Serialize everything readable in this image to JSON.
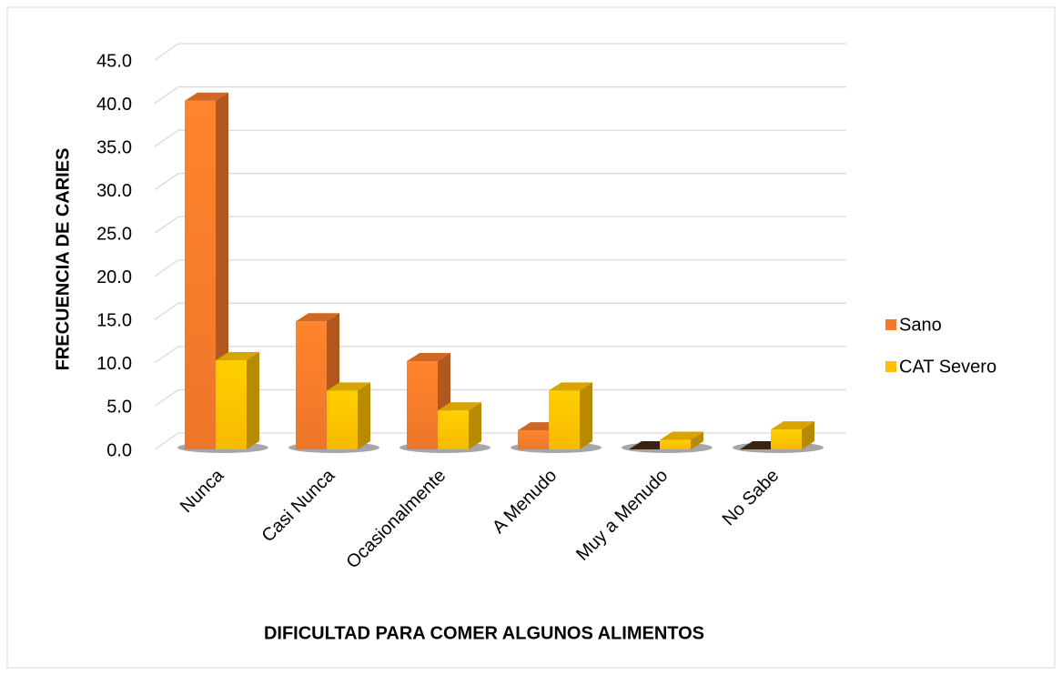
{
  "chart_data": {
    "type": "bar3d",
    "y_label": "FRECUENCIA DE CARIES",
    "x_label": "DIFICULTAD PARA COMER ALGUNOS ALIMENTOS",
    "categories": [
      "Nunca",
      "Casi Nunca",
      "Ocasionalmente",
      "A Menudo",
      "Muy a Menudo",
      "No Sabe"
    ],
    "series": [
      {
        "name": "Sano",
        "color": "#f47a2a",
        "values": [
          40.3,
          14.8,
          10.2,
          2.2,
          0,
          0
        ]
      },
      {
        "name": "CAT Severo",
        "color": "#ffc000",
        "values": [
          10.3,
          6.8,
          4.5,
          6.8,
          1.1,
          2.3
        ]
      }
    ],
    "ylim": [
      0,
      45
    ],
    "yticks": [
      {
        "value": 0,
        "label": "0.0"
      },
      {
        "value": 5,
        "label": "5.0"
      },
      {
        "value": 10,
        "label": "10.0"
      },
      {
        "value": 15,
        "label": "15.0"
      },
      {
        "value": 20,
        "label": "20.0"
      },
      {
        "value": 25,
        "label": "25.0"
      },
      {
        "value": 30,
        "label": "30.0"
      },
      {
        "value": 35,
        "label": "35.0"
      },
      {
        "value": 40,
        "label": "40.0"
      },
      {
        "value": 45,
        "label": "45.0"
      }
    ],
    "grid": true,
    "legend": "right"
  }
}
